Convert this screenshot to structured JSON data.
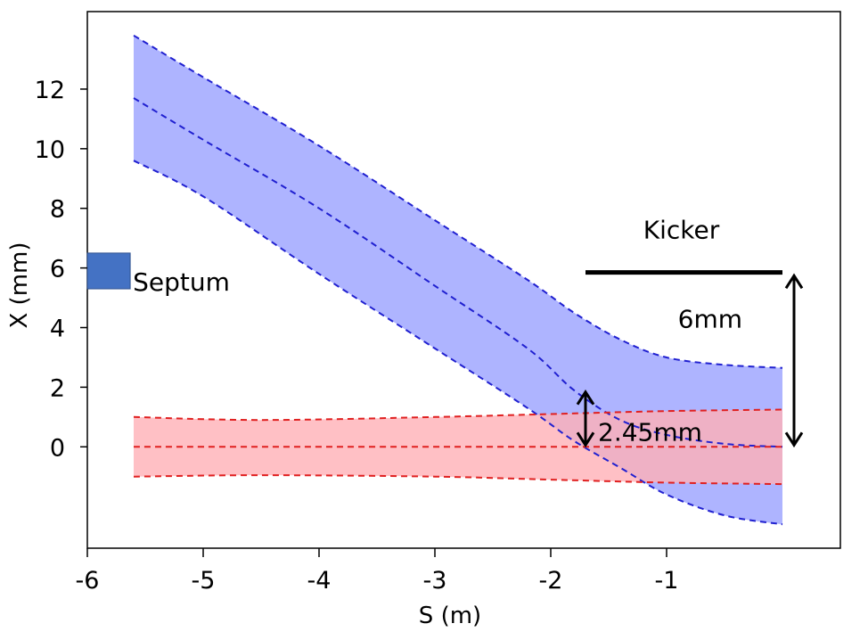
{
  "chart_data": {
    "type": "area",
    "xlabel": "S (m)",
    "ylabel": "X (mm)",
    "xlim": [
      -6,
      0.5
    ],
    "ylim": [
      -3.4,
      14.6
    ],
    "x_ticks": [
      -6,
      -5,
      -4,
      -3,
      -2,
      -1
    ],
    "y_ticks": [
      0,
      2,
      4,
      6,
      8,
      10,
      12
    ],
    "grid": false,
    "series": [
      {
        "name": "",
        "color": "#aab0ff",
        "edge_color": "#2020d0",
        "s": [
          -5.6,
          -5.0,
          -4.0,
          -3.0,
          -2.2,
          -1.8,
          -1.4,
          -1.0,
          -0.5,
          0.0
        ],
        "upper": [
          13.8,
          12.4,
          10.1,
          7.6,
          5.6,
          4.5,
          3.6,
          3.0,
          2.75,
          2.65
        ],
        "center": [
          11.7,
          10.3,
          8.0,
          5.4,
          3.3,
          1.9,
          0.9,
          0.4,
          0.1,
          0.0
        ],
        "lower": [
          9.6,
          8.4,
          5.8,
          3.3,
          1.3,
          0.2,
          -0.7,
          -1.6,
          -2.3,
          -2.6
        ]
      },
      {
        "name": "",
        "color": "#ffb0b6",
        "edge_color": "#e02020",
        "s": [
          -5.6,
          -4.5,
          -3.0,
          -2.0,
          -1.0,
          0.0
        ],
        "upper": [
          1.0,
          0.9,
          1.0,
          1.1,
          1.2,
          1.25
        ],
        "center": [
          0.0,
          0.0,
          0.0,
          0.0,
          0.0,
          0.0
        ],
        "lower": [
          -1.0,
          -0.95,
          -1.0,
          -1.1,
          -1.2,
          -1.25
        ]
      }
    ],
    "septum": {
      "label": "Septum",
      "s_range": [
        -6,
        -5.63
      ],
      "x_range": [
        5.3,
        6.5
      ],
      "color": "#4472c4"
    },
    "kicker": {
      "label": "Kicker",
      "s_range": [
        -1.7,
        0.0
      ],
      "x": 5.85
    },
    "annotations": [
      {
        "label": "6mm",
        "s": 0.1,
        "x_from": 0.0,
        "x_to": 5.8
      },
      {
        "label": "2.45mm",
        "s": -1.7,
        "x_from": 0.0,
        "x_to": 1.9
      }
    ]
  }
}
